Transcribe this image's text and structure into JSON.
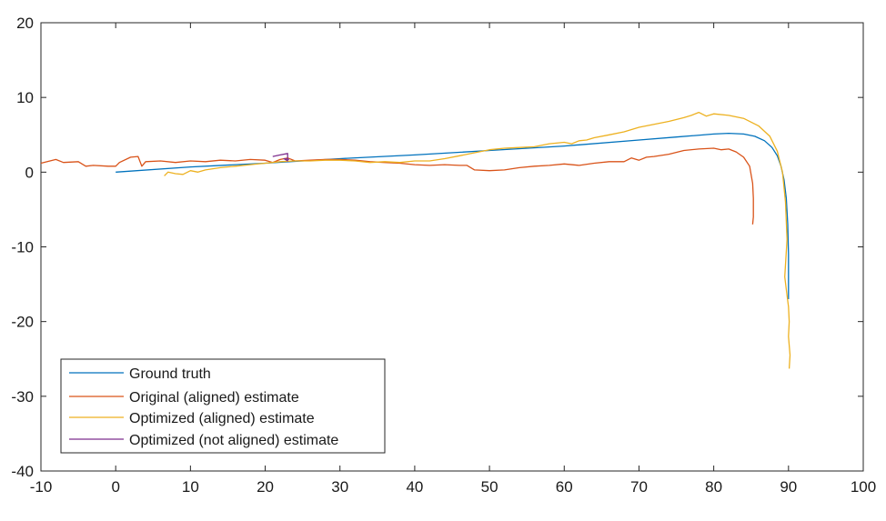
{
  "chart_data": {
    "type": "line",
    "title": "",
    "xlabel": "",
    "ylabel": "",
    "xlim": [
      -10,
      100
    ],
    "ylim": [
      -40,
      20
    ],
    "xticks": [
      -10,
      0,
      10,
      20,
      30,
      40,
      50,
      60,
      70,
      80,
      90,
      100
    ],
    "yticks": [
      -40,
      -30,
      -20,
      -10,
      0,
      10,
      20
    ],
    "grid": false,
    "legend_position": "bottom-left",
    "series": [
      {
        "name": "Ground truth",
        "color": "#0072BD",
        "x": [
          0,
          10,
          20,
          30,
          40,
          50,
          60,
          70,
          75,
          80,
          82,
          84,
          85.5,
          86.8,
          87.8,
          88.5,
          89,
          89.4,
          89.7,
          89.9,
          90,
          90
        ],
        "y": [
          0,
          0.7,
          1.2,
          1.8,
          2.3,
          2.9,
          3.5,
          4.3,
          4.7,
          5.1,
          5.2,
          5.1,
          4.8,
          4.2,
          3.3,
          2.2,
          0.8,
          -1,
          -3.5,
          -7,
          -11,
          -17
        ]
      },
      {
        "name": "Original (aligned) estimate",
        "color": "#D95319",
        "x": [
          -10,
          -8,
          -7,
          -5,
          -4,
          -3,
          -1,
          0,
          0.5,
          2,
          3,
          3.5,
          4,
          6,
          8,
          10,
          12,
          14,
          16,
          18,
          20,
          21,
          22,
          23,
          24,
          26,
          28,
          30,
          32,
          34,
          36,
          38,
          40,
          42,
          44,
          46,
          47,
          48,
          50,
          52,
          54,
          56,
          58,
          60,
          62,
          64,
          66,
          68,
          69,
          70,
          71,
          72,
          74,
          76,
          78,
          80,
          81,
          82,
          83,
          84,
          84.8,
          85.2,
          85.3,
          85.3,
          85.2
        ],
        "y": [
          1.2,
          1.7,
          1.3,
          1.4,
          0.8,
          0.9,
          0.8,
          0.8,
          1.3,
          2.0,
          2.1,
          0.8,
          1.4,
          1.5,
          1.3,
          1.5,
          1.4,
          1.6,
          1.5,
          1.7,
          1.6,
          1.3,
          1.7,
          1.9,
          1.5,
          1.6,
          1.7,
          1.7,
          1.6,
          1.4,
          1.3,
          1.2,
          1.0,
          0.9,
          1.0,
          0.9,
          0.9,
          0.3,
          0.2,
          0.3,
          0.6,
          0.8,
          0.9,
          1.1,
          0.9,
          1.2,
          1.4,
          1.4,
          1.9,
          1.6,
          2.0,
          2.1,
          2.4,
          2.9,
          3.1,
          3.2,
          3.0,
          3.1,
          2.7,
          2.0,
          0.8,
          -1.5,
          -3.5,
          -6.0,
          -7.0
        ]
      },
      {
        "name": "Optimized (aligned) estimate",
        "color": "#EDB120",
        "x": [
          6.5,
          7,
          8,
          9,
          10,
          11,
          12,
          14,
          16,
          18,
          20,
          22,
          24,
          26,
          28,
          30,
          32,
          34,
          36,
          38,
          40,
          42,
          44,
          46,
          48,
          50,
          52,
          54,
          56,
          58,
          60,
          61,
          62,
          63,
          64,
          66,
          68,
          70,
          72,
          74,
          76,
          77,
          78,
          79,
          80,
          82,
          84,
          86,
          87.5,
          88.5,
          89.2,
          89.6,
          89.8,
          89.5,
          89.8,
          90,
          90.1,
          90,
          90.2,
          90.1
        ],
        "y": [
          -0.5,
          0.0,
          -0.2,
          -0.3,
          0.2,
          0.0,
          0.3,
          0.6,
          0.8,
          1.0,
          1.2,
          1.4,
          1.5,
          1.5,
          1.6,
          1.6,
          1.5,
          1.3,
          1.4,
          1.3,
          1.5,
          1.5,
          1.8,
          2.2,
          2.6,
          3.0,
          3.2,
          3.3,
          3.4,
          3.8,
          4.0,
          3.8,
          4.2,
          4.3,
          4.6,
          5.0,
          5.4,
          6.0,
          6.4,
          6.8,
          7.3,
          7.6,
          8.0,
          7.5,
          7.8,
          7.6,
          7.2,
          6.2,
          4.8,
          2.8,
          0.0,
          -4.0,
          -9.0,
          -14.0,
          -16.5,
          -18.0,
          -20.0,
          -22.0,
          -24.5,
          -26.3
        ]
      },
      {
        "name": "Optimized (not aligned) estimate",
        "color": "#7E2F8E",
        "x": [
          21,
          22,
          23,
          23,
          22.5,
          23.2
        ],
        "y": [
          2.1,
          2.3,
          2.5,
          1.5,
          1.8,
          1.7
        ]
      }
    ]
  }
}
